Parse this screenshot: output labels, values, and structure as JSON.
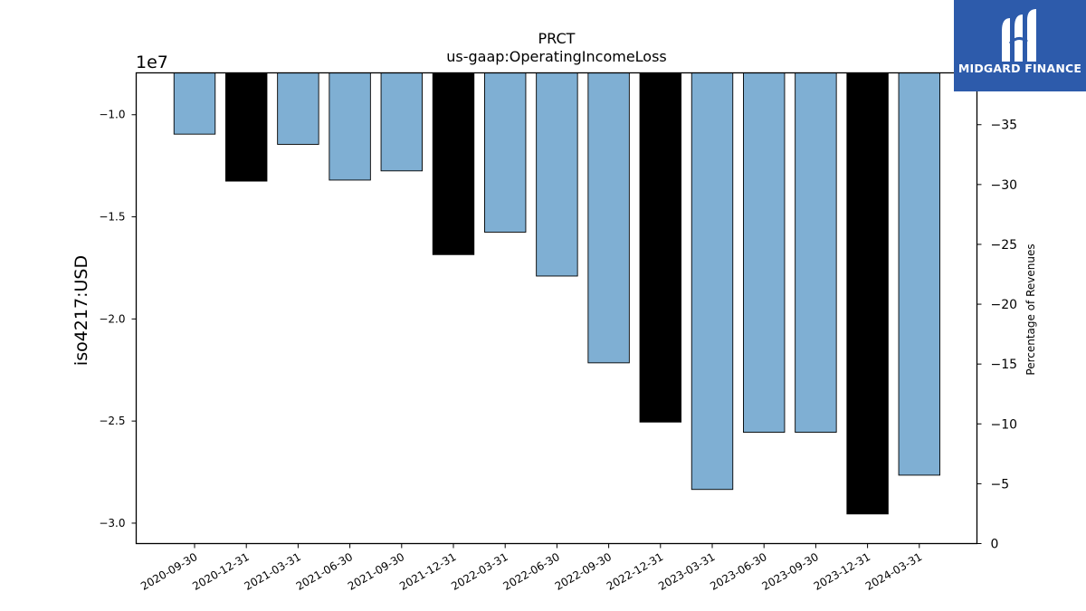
{
  "chart_data": {
    "type": "bar",
    "title": "PRCT",
    "subtitle": "us-gaap:OperatingIncomeLoss",
    "ylabel": "iso4217:USD",
    "y2label": "Percentage of Revenues",
    "offset_label": "1e7",
    "categories": [
      "2020-09-30",
      "2020-12-31",
      "2021-03-31",
      "2021-06-30",
      "2021-09-30",
      "2021-12-31",
      "2022-03-31",
      "2022-06-30",
      "2022-09-30",
      "2022-12-31",
      "2023-03-31",
      "2023-06-30",
      "2023-09-30",
      "2023-12-31",
      "2024-03-31"
    ],
    "values": [
      -10950000,
      -13250000,
      -11450000,
      -13200000,
      -12750000,
      -16850000,
      -15750000,
      -17900000,
      -22150000,
      -25050000,
      -28350000,
      -25550000,
      -25550000,
      -29550000,
      -27650000
    ],
    "annual": [
      false,
      true,
      false,
      false,
      false,
      true,
      false,
      false,
      false,
      true,
      false,
      false,
      false,
      true,
      false
    ],
    "ylim": [
      -31000000,
      -7950000
    ],
    "yticks": [
      -10000000,
      -15000000,
      -20000000,
      -25000000,
      -30000000
    ],
    "ytick_labels": [
      "−1.0",
      "−1.5",
      "−2.0",
      "−2.5",
      "−3.0"
    ],
    "y2lim": [
      0,
      39.33
    ],
    "y2ticks": [
      0,
      5,
      10,
      15,
      20,
      25,
      30,
      35
    ],
    "y2tick_labels": [
      "0",
      "−5",
      "−10",
      "−15",
      "−20",
      "−25",
      "−30",
      "−35"
    ],
    "colors": {
      "quarterly": "#7fafd3",
      "annual": "#000000",
      "edge": "#000000"
    },
    "grid": false,
    "legend": "none"
  },
  "logo": {
    "text": "MIDGARD FINANCE",
    "background": "#2d5bab"
  }
}
